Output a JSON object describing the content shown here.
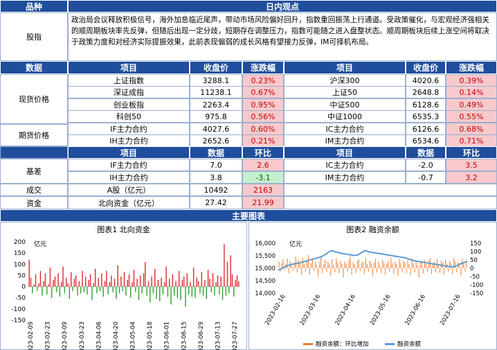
{
  "header": {
    "col1": "品种",
    "col2": "日内观点"
  },
  "view": {
    "label": "股指",
    "text": "政治局会议释放积极信号，海外加息临近尾声，带动市场风险偏好回升，指数重回振荡上行通道。受政策催化，与宏观经济强相关的顺周期板块率先反弹，但随后出现一定分歧，短期存在调整压力，指数可能随之进入盘整状态。顺周期板块后续上涨空间将取决于政策力度和对经济实际提振效果，此前表现偏弱的成长风格有望接力反弹，IM可择机布局。"
  },
  "price_table": {
    "headers": [
      "数据",
      "项目",
      "收盘价",
      "涨跌幅",
      "项目",
      "收盘价",
      "涨跌幅"
    ],
    "spot_label": "现货价格",
    "futures_label": "期货价格",
    "rows": [
      [
        "上证指数",
        "3288.1",
        "0.23%",
        "沪深300",
        "4020.6",
        "0.39%"
      ],
      [
        "深证成指",
        "11238.1",
        "0.67%",
        "上证50",
        "2648.8",
        "0.14%"
      ],
      [
        "创业板指",
        "2263.4",
        "0.95%",
        "中证500",
        "6128.6",
        "0.49%"
      ],
      [
        "科创50",
        "975.8",
        "0.56%",
        "中证1000",
        "6535.3",
        "0.55%"
      ],
      [
        "IF主力合约",
        "4027.6",
        "0.60%",
        "IC主力合约",
        "6126.6",
        "0.68%"
      ],
      [
        "IH主力合约",
        "2652.6",
        "0.21%",
        "IM主力合约",
        "6534.6",
        "0.71%"
      ]
    ]
  },
  "basis_table": {
    "headers": [
      "项目",
      "数据",
      "环比",
      "项目",
      "数据",
      "环比"
    ],
    "basis_label": "基差",
    "volume_label": "成交",
    "funds_label": "资金",
    "basis_rows": [
      [
        "IF主力合约",
        "7.0",
        "2.6",
        "IC主力合约",
        "-2.0",
        "3.5"
      ],
      [
        "IH主力合约",
        "3.8",
        "-3.1",
        "IM主力合约",
        "-0.7",
        "3.2"
      ]
    ],
    "volume_row": [
      "A股（亿元）",
      "10492",
      "2163"
    ],
    "funds_row": [
      "北向资金（亿元）",
      "27.42",
      "21.99"
    ]
  },
  "charts_header": "主要图表",
  "chart_data": [
    {
      "type": "bar",
      "title": "图表1 北向资金",
      "ylabel": "亿元",
      "ylim": [
        -150,
        200
      ],
      "yticks": [
        200,
        150,
        100,
        50,
        0,
        -50,
        -100,
        -150
      ],
      "xtick_labels": [
        "2023-02-09",
        "2023-02-23",
        "2023-03-09",
        "2023-03-23",
        "2023-04-06",
        "2023-04-20",
        "2023-05-04",
        "2023-05-18",
        "2023-06-01",
        "2023-06-15",
        "2023-06-29",
        "2023-07-13",
        "2023-07-27"
      ],
      "values": [
        120,
        40,
        -30,
        10,
        55,
        -20,
        15,
        70,
        -40,
        25,
        60,
        -35,
        10,
        85,
        -50,
        30,
        45,
        -25,
        60,
        -45,
        20,
        90,
        -30,
        40,
        15,
        -55,
        65,
        -20,
        35,
        50,
        -40,
        25,
        -30,
        70,
        -25,
        45,
        -35,
        30,
        55,
        -60,
        15,
        80,
        -30,
        40,
        -20,
        60,
        -45,
        25,
        70,
        -35,
        20,
        50,
        -25,
        35,
        -55,
        95,
        -30,
        45,
        -20,
        65,
        -40,
        30,
        55,
        -50,
        20,
        75,
        -25,
        35,
        -60,
        50,
        -30,
        60,
        110,
        -40,
        25,
        -70,
        45,
        -30,
        80,
        -55,
        30,
        -65,
        40,
        -35,
        20,
        90,
        -45,
        35,
        -80,
        55,
        -40,
        25,
        -50,
        70,
        -60,
        30,
        45,
        -90,
        60,
        -35,
        20,
        -45,
        85,
        -50,
        40,
        25,
        -30,
        65,
        -40,
        30,
        -55,
        75,
        35,
        -25,
        60,
        -40,
        20,
        50,
        -35,
        45,
        -60,
        190,
        -40,
        110,
        -30,
        140,
        55,
        -45,
        30,
        50,
        25
      ]
    },
    {
      "type": "bar+line",
      "title": "图表2 融资余额",
      "ylabel": "亿元",
      "ylim_left": [
        14000,
        16000
      ],
      "yticks_left": [
        "16,000",
        "15,500",
        "15,000",
        "14,500",
        "14,000"
      ],
      "ylim_right": [
        -150,
        150
      ],
      "yticks_right": [
        150,
        100,
        50,
        0,
        -50,
        -100,
        -150
      ],
      "xtick_labels": [
        "2023-02-16",
        "2023-03-16",
        "2023-04-16",
        "2023-05-16",
        "2023-06-16",
        "2023-07-16"
      ],
      "series": [
        {
          "name": "融资余额：环比增加",
          "color": "#ed7d31",
          "values": [
            40,
            -20,
            30,
            55,
            -10,
            25,
            60,
            -30,
            45,
            20,
            -15,
            35,
            70,
            -25,
            50,
            30,
            -40,
            60,
            25,
            -20,
            45,
            80,
            -35,
            30,
            55,
            -15,
            40,
            20,
            -50,
            35,
            65,
            -30,
            25,
            50,
            -20,
            40,
            30,
            -45,
            55,
            20,
            -25,
            60,
            35,
            -30,
            45,
            25,
            -55,
            40,
            30,
            -20,
            50,
            70,
            -40,
            35,
            25,
            -30,
            45,
            55,
            -15,
            30,
            40,
            -35,
            60,
            25,
            -20,
            45,
            30,
            -50,
            35,
            55,
            -25,
            40,
            20,
            -30,
            50,
            35,
            -40,
            25,
            45,
            -20,
            60,
            30,
            -35,
            40,
            25,
            -45,
            55,
            30,
            -20,
            45,
            35,
            -30,
            50,
            25,
            -40,
            60,
            30,
            -25,
            45,
            20,
            -55,
            40,
            35,
            -30,
            50,
            25,
            -20,
            45,
            60,
            -35,
            30,
            40,
            -25,
            55,
            20,
            -30,
            45,
            35,
            -40,
            50,
            25,
            -20,
            45,
            30,
            -35,
            60,
            40,
            -25,
            35,
            20,
            -45,
            55,
            30,
            -20,
            50
          ]
        },
        {
          "name": "融资余额",
          "color": "#5b9bd5",
          "values": [
            14920,
            14950,
            14980,
            15010,
            15050,
            15080,
            15100,
            15120,
            15140,
            15160,
            15170,
            15180,
            15190,
            15200,
            15220,
            15230,
            15250,
            15260,
            15280,
            15300,
            15320,
            15340,
            15350,
            15370,
            15380,
            15400,
            15420,
            15440,
            15460,
            15480,
            15520,
            15560,
            15600,
            15650,
            15680,
            15700,
            15690,
            15670,
            15650,
            15640,
            15620,
            15600,
            15590,
            15580,
            15570,
            15560,
            15550,
            15540,
            15530,
            15520,
            15510,
            15520,
            15530,
            15560,
            15600,
            15640,
            15680,
            15700,
            15690,
            15670,
            15650,
            15640,
            15630,
            15620,
            15610,
            15600,
            15590,
            15580,
            15570,
            15560,
            15550,
            15540,
            15530,
            15520,
            15510,
            15500,
            15490,
            15480,
            15470,
            15460,
            15450,
            15440,
            15430,
            15420,
            15400,
            15380,
            15360,
            15340,
            15320,
            15300,
            15290,
            15280,
            15270,
            15260,
            15250,
            15240,
            15230,
            15220,
            15210,
            15200,
            15190,
            15180,
            15170,
            15160,
            15150,
            15140,
            15130,
            15120,
            15110,
            15100,
            15090,
            15080,
            15070,
            15060,
            15050,
            15060,
            15080,
            15100,
            15130,
            15160,
            15190,
            15210,
            15230,
            15250,
            15270
          ]
        }
      ]
    }
  ]
}
